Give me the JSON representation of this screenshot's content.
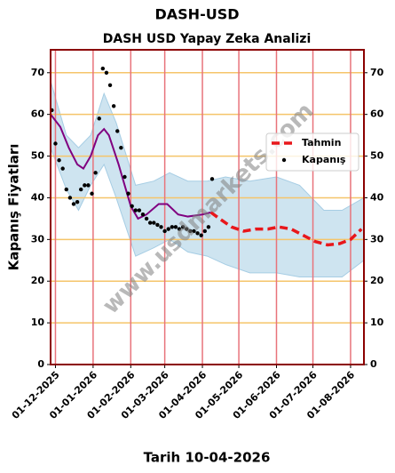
{
  "chart_data": {
    "type": "line",
    "title": "DASH-USD",
    "subtitle": "DASH USD Yapay Zeka Analizi",
    "y_label": "Kapanış Fiyatları",
    "x_label": "Tarih 10-04-2026",
    "watermark": "www.usdmarkets.com",
    "xlim": [
      "2025-11-27",
      "2026-08-12"
    ],
    "ylim": [
      0,
      75.5
    ],
    "yticks": [
      0,
      10,
      20,
      30,
      40,
      50,
      60,
      70
    ],
    "xticks": [
      {
        "value": "2025-12-01",
        "label": "01-12-2025"
      },
      {
        "value": "2026-01-01",
        "label": "01-01-2026"
      },
      {
        "value": "2026-02-01",
        "label": "01-02-2026"
      },
      {
        "value": "2026-03-01",
        "label": "01-03-2026"
      },
      {
        "value": "2026-04-01",
        "label": "01-04-2026"
      },
      {
        "value": "2026-05-01",
        "label": "01-05-2026"
      },
      {
        "value": "2026-06-01",
        "label": "01-06-2026"
      },
      {
        "value": "2026-07-01",
        "label": "01-07-2026"
      },
      {
        "value": "2026-08-01",
        "label": "01-08-2026"
      }
    ],
    "grid": true,
    "ygrid_color": "#f5c56a",
    "xgrid_color": "#e8737b",
    "frame_color": "#8b0000",
    "legend": "upper right",
    "band": {
      "color": "#a6cde4",
      "x": [
        "2025-11-27",
        "2025-12-10",
        "2025-12-20",
        "2025-12-30",
        "2026-01-10",
        "2026-01-20",
        "2026-02-05",
        "2026-02-20",
        "2026-03-05",
        "2026-03-20",
        "2026-04-05",
        "2026-04-20",
        "2026-05-10",
        "2026-06-01",
        "2026-06-20",
        "2026-07-10",
        "2026-07-25",
        "2026-08-12"
      ],
      "upper": [
        68,
        55,
        52,
        55,
        65,
        58,
        43,
        44,
        46,
        44,
        44,
        45,
        44,
        45,
        43,
        37,
        37,
        40
      ],
      "lower": [
        52,
        42,
        37,
        43,
        48,
        40,
        26,
        28,
        30,
        27,
        26,
        24,
        22,
        22,
        21,
        21,
        21,
        25
      ]
    },
    "fit": {
      "color": "#800080",
      "x": [
        "2025-11-27",
        "2025-12-05",
        "2025-12-12",
        "2025-12-19",
        "2025-12-24",
        "2025-12-30",
        "2026-01-05",
        "2026-01-10",
        "2026-01-14",
        "2026-01-22",
        "2026-02-01",
        "2026-02-07",
        "2026-02-14",
        "2026-02-24",
        "2026-03-03",
        "2026-03-12",
        "2026-03-20",
        "2026-04-01",
        "2026-04-08"
      ],
      "values": [
        60,
        57,
        52,
        48,
        47,
        50,
        55,
        56.5,
        55,
        48,
        38,
        35,
        36,
        38.5,
        38.5,
        36,
        35.5,
        36,
        36.5
      ]
    },
    "series": [
      {
        "name": "Tahmin",
        "color": "#e8171b",
        "style": "dashed",
        "x": [
          "2026-04-08",
          "2026-04-15",
          "2026-04-25",
          "2026-05-05",
          "2026-05-15",
          "2026-05-25",
          "2026-06-03",
          "2026-06-13",
          "2026-06-23",
          "2026-07-03",
          "2026-07-13",
          "2026-07-23",
          "2026-08-01",
          "2026-08-10"
        ],
        "values": [
          36.5,
          35,
          33,
          32,
          32.5,
          32.5,
          33,
          32.5,
          31,
          29.5,
          28.7,
          29,
          30,
          32.5
        ]
      },
      {
        "name": "Kapanış",
        "color": "#000000",
        "style": "dots",
        "x": [
          "2025-11-28",
          "2025-12-01",
          "2025-12-04",
          "2025-12-07",
          "2025-12-10",
          "2025-12-13",
          "2025-12-16",
          "2025-12-19",
          "2025-12-22",
          "2025-12-25",
          "2025-12-28",
          "2025-12-31",
          "2026-01-03",
          "2026-01-06",
          "2026-01-09",
          "2026-01-12",
          "2026-01-15",
          "2026-01-18",
          "2026-01-21",
          "2026-01-24",
          "2026-01-27",
          "2026-01-30",
          "2026-02-02",
          "2026-02-05",
          "2026-02-08",
          "2026-02-11",
          "2026-02-14",
          "2026-02-17",
          "2026-02-20",
          "2026-02-23",
          "2026-02-26",
          "2026-03-01",
          "2026-03-04",
          "2026-03-07",
          "2026-03-10",
          "2026-03-13",
          "2026-03-16",
          "2026-03-19",
          "2026-03-22",
          "2026-03-25",
          "2026-03-28",
          "2026-03-31",
          "2026-04-03",
          "2026-04-06",
          "2026-04-09"
        ],
        "values": [
          61,
          53,
          49,
          47,
          42,
          40,
          38.5,
          39,
          42,
          43,
          43,
          41,
          46,
          59,
          71,
          70,
          67,
          62,
          56,
          52,
          45,
          41,
          38,
          37,
          37,
          36,
          35,
          34,
          34,
          33.5,
          33,
          32,
          32.5,
          33,
          33,
          32.5,
          33,
          32.5,
          32,
          32,
          31.5,
          31,
          32,
          33,
          44.5
        ]
      }
    ]
  }
}
